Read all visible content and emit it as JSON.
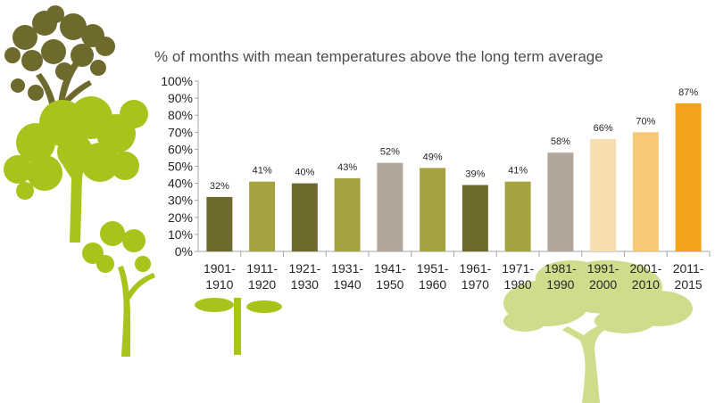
{
  "colors": {
    "dark_olive": "#6e6a2e",
    "olive": "#a3a342",
    "taupe": "#b2a59a",
    "pale_peach": "#f6deb0",
    "light_orange": "#f7c877",
    "orange": "#f2a31d",
    "tree_dark": "#6e6a2e",
    "tree_lime": "#a8c41c",
    "tree_pale": "#cfdc8c"
  },
  "chart_data": {
    "type": "bar",
    "title": "% of months with mean temperatures above the long term average",
    "xlabel": "",
    "ylabel": "",
    "ylim": [
      0,
      100
    ],
    "yticks": [
      "0%",
      "10%",
      "20%",
      "30%",
      "40%",
      "50%",
      "60%",
      "70%",
      "80%",
      "90%",
      "100%"
    ],
    "grid": false,
    "categories": [
      [
        "1901-",
        "1910"
      ],
      [
        "1911-",
        "1920"
      ],
      [
        "1921-",
        "1930"
      ],
      [
        "1931-",
        "1940"
      ],
      [
        "1941-",
        "1950"
      ],
      [
        "1951-",
        "1960"
      ],
      [
        "1961-",
        "1970"
      ],
      [
        "1971-",
        "1980"
      ],
      [
        "1981-",
        "1990"
      ],
      [
        "1991-",
        "2000"
      ],
      [
        "2001-",
        "2010"
      ],
      [
        "2011-",
        "2015"
      ]
    ],
    "values": [
      32,
      41,
      40,
      43,
      52,
      49,
      39,
      41,
      58,
      66,
      70,
      87
    ],
    "labels": [
      "32%",
      "41%",
      "40%",
      "43%",
      "52%",
      "49%",
      "39%",
      "41%",
      "58%",
      "66%",
      "70%",
      "87%"
    ],
    "bar_colors": [
      "dark_olive",
      "olive",
      "dark_olive",
      "olive",
      "taupe",
      "olive",
      "dark_olive",
      "olive",
      "taupe",
      "pale_peach",
      "light_orange",
      "orange"
    ]
  }
}
